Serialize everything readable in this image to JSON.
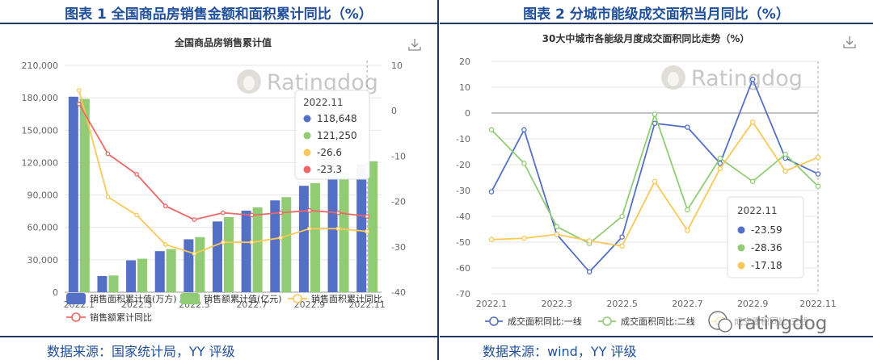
{
  "left": {
    "fig_title": "图表 1 全国商品房销售金额和面积累计同比（%）",
    "source": "数据来源：国家统计局，YY 评级",
    "watermark": "Ratingdog",
    "download_icon": "download-icon",
    "chart_data": {
      "type": "bar",
      "title": "全国商品房销售累计值",
      "categories": [
        "2022.1",
        "2022.2",
        "2022.3",
        "2022.4",
        "2022.5",
        "2022.6",
        "2022.7",
        "2022.8",
        "2022.9",
        "2022.10",
        "2022.11"
      ],
      "x_tick_labels": [
        "2022.1",
        "2022.3",
        "2022.5",
        "2022.7",
        "2022.9",
        "2022.11"
      ],
      "y_left": {
        "min": 0,
        "max": 210000,
        "ticks": [
          "0",
          "30,000",
          "60,000",
          "90,000",
          "120,000",
          "150,000",
          "180,000",
          "210,000"
        ]
      },
      "y_right": {
        "min": -40,
        "max": 10,
        "ticks": [
          "10",
          "0",
          "-10",
          "-20",
          "-30",
          "-40"
        ]
      },
      "series": [
        {
          "name": "销售面积累计值(万方)",
          "type": "bar",
          "axis": "left",
          "color": "#5470c6",
          "values": [
            181000,
            15000,
            29500,
            38000,
            49000,
            65500,
            75500,
            85000,
            98500,
            108500,
            118648
          ]
        },
        {
          "name": "销售额累计值(亿元)",
          "type": "bar",
          "axis": "left",
          "color": "#91cc75",
          "values": [
            179000,
            15500,
            31000,
            40000,
            51000,
            69500,
            78500,
            88000,
            101000,
            111500,
            121250
          ]
        },
        {
          "name": "销售面积累计同比",
          "type": "line",
          "axis": "right",
          "color": "#fac858",
          "values": [
            4.5,
            -19.0,
            -23.0,
            -29.5,
            -31.5,
            -29.0,
            -29.0,
            -28.0,
            -26.0,
            -26.0,
            -26.6
          ]
        },
        {
          "name": "销售额累计同比",
          "type": "line",
          "axis": "right",
          "color": "#ee6666",
          "values": [
            1.5,
            -9.5,
            -14.0,
            -21.0,
            -24.0,
            -22.5,
            -23.0,
            -22.5,
            -22.0,
            -22.5,
            -23.3
          ]
        }
      ],
      "tooltip": {
        "title": "2022.11",
        "rows": [
          "118,648",
          "121,250",
          "-26.6",
          "-23.3"
        ]
      }
    }
  },
  "right": {
    "fig_title": "图表 2 分城市能级成交面积当月同比（%）",
    "source": "数据来源：wind，YY 评级",
    "watermark": "Ratingdog",
    "wechat_watermark": "ratingdog",
    "download_icon": "download-icon",
    "chart_data": {
      "type": "line",
      "title": "30大中城市各能级月度成交面积同比走势（%）",
      "categories": [
        "2022.1",
        "2022.2",
        "2022.3",
        "2022.4",
        "2022.5",
        "2022.6",
        "2022.7",
        "2022.8",
        "2022.9",
        "2022.10",
        "2022.11"
      ],
      "x_tick_labels": [
        "2022.1",
        "2022.3",
        "2022.5",
        "2022.7",
        "2022.9",
        "2022.11"
      ],
      "y": {
        "min": -70,
        "max": 20,
        "ticks": [
          "20",
          "10",
          "0",
          "-10",
          "-20",
          "-30",
          "-40",
          "-50",
          "-60",
          "-70"
        ]
      },
      "series": [
        {
          "name": "成交面积同比:一线",
          "color": "#5470c6",
          "values": [
            -30.5,
            -6.5,
            -47.0,
            -61.5,
            -48.0,
            -4.0,
            -5.5,
            -19.5,
            13.0,
            -17.5,
            -23.59
          ]
        },
        {
          "name": "成交面积同比:二线",
          "color": "#91cc75",
          "values": [
            -6.5,
            -19.5,
            -44.0,
            -50.5,
            -40.0,
            -0.5,
            -37.5,
            -17.5,
            -26.5,
            -16.0,
            -28.36
          ]
        },
        {
          "name": "成交面积同比:三线",
          "color": "#fac858",
          "values": [
            -49.0,
            -48.5,
            -47.0,
            -49.5,
            -51.5,
            -26.5,
            -45.5,
            -21.5,
            -3.5,
            -22.5,
            -17.18
          ]
        }
      ],
      "tooltip": {
        "title": "2022.11",
        "rows": [
          "-23.59",
          "-28.36",
          "-17.18"
        ]
      }
    }
  }
}
